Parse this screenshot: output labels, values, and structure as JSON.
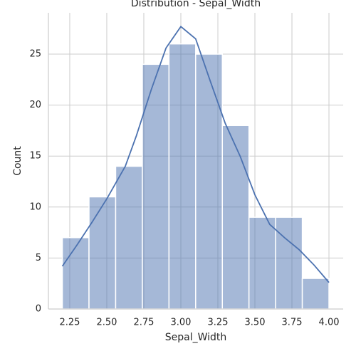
{
  "chart_data": {
    "type": "histogram",
    "title": "Distribution - Sepal_Width",
    "xlabel": "Sepal_Width",
    "ylabel": "Count",
    "bins": [
      2.2,
      2.38,
      2.56,
      2.74,
      2.92,
      3.1,
      3.28,
      3.46,
      3.64,
      3.82,
      4.0
    ],
    "values": [
      7,
      11,
      14,
      24,
      26,
      25,
      18,
      9,
      9,
      3
    ],
    "color": "#4c72b0",
    "kde": {
      "x": [
        2.2,
        2.3,
        2.4,
        2.5,
        2.625,
        2.7,
        2.8,
        2.9,
        3.0,
        3.1,
        3.2,
        3.3,
        3.4,
        3.5,
        3.6,
        3.7,
        3.8,
        3.9,
        4.0
      ],
      "values": [
        4.2,
        6.3,
        8.5,
        10.8,
        14.0,
        17.0,
        21.5,
        25.6,
        27.7,
        26.5,
        22.3,
        18.2,
        15.0,
        11.2,
        8.3,
        7.0,
        5.8,
        4.3,
        2.6
      ]
    },
    "xlim": [
      2.106,
      4.096
    ],
    "ylim": [
      0,
      29.05
    ],
    "xticks": [
      {
        "value": 2.25,
        "label": "2.25"
      },
      {
        "value": 2.5,
        "label": "2.50"
      },
      {
        "value": 2.75,
        "label": "2.75"
      },
      {
        "value": 3.0,
        "label": "3.00"
      },
      {
        "value": 3.25,
        "label": "3.25"
      },
      {
        "value": 3.5,
        "label": "3.50"
      },
      {
        "value": 3.75,
        "label": "3.75"
      },
      {
        "value": 4.0,
        "label": "4.00"
      }
    ],
    "yticks": [
      0,
      5,
      10,
      15,
      20,
      25
    ],
    "grid": true
  }
}
